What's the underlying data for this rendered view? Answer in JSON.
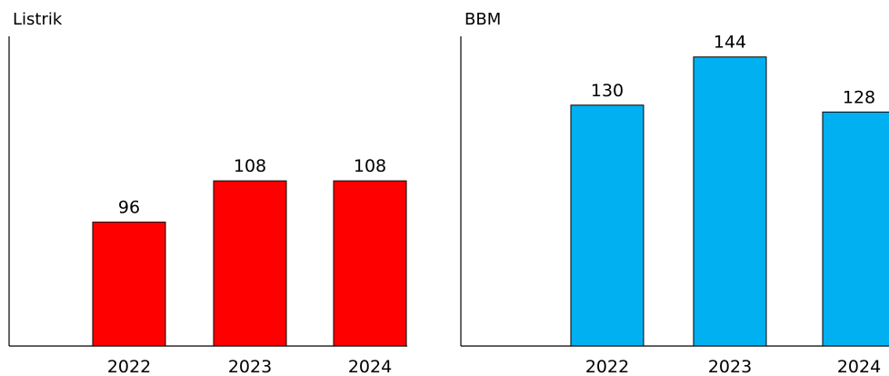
{
  "chart_data": [
    {
      "type": "bar",
      "title": "Listrik",
      "categories": [
        "2022",
        "2023",
        "2024"
      ],
      "values": [
        96,
        108,
        108
      ],
      "data_labels": [
        "96",
        "108",
        "108"
      ],
      "color": "#ff0000",
      "ylim": [
        60,
        150
      ],
      "grid": false,
      "legend": "none"
    },
    {
      "type": "bar",
      "title": "BBM",
      "categories": [
        "2022",
        "2023",
        "2024"
      ],
      "values": [
        130,
        144,
        128
      ],
      "data_labels": [
        "130",
        "144",
        "128"
      ],
      "color": "#00b0f0",
      "ylim": [
        60,
        150
      ],
      "grid": false,
      "legend": "none"
    }
  ]
}
